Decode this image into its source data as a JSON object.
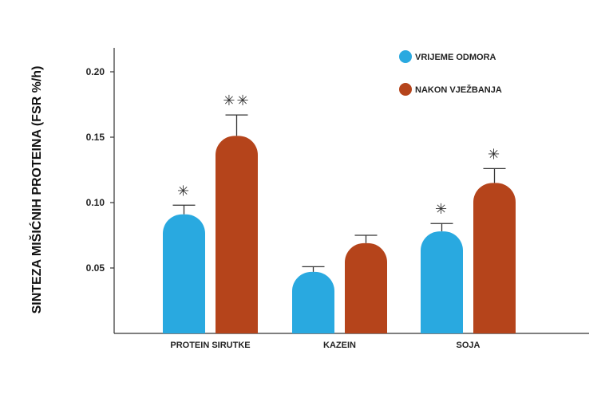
{
  "chart_data": {
    "type": "bar",
    "title": "",
    "xlabel": "",
    "ylabel": "SINTEZA MIŠIĆNIH PROTEINA (FSR %/h)",
    "ylim": [
      0,
      0.22
    ],
    "yticks": [
      "0.05",
      "0.10",
      "0.15",
      "0.20"
    ],
    "ytick_values": [
      0.05,
      0.1,
      0.15,
      0.2
    ],
    "categories": [
      "PROTEIN SIRUTKE",
      "KAZEIN",
      "SOJA"
    ],
    "legend_position": "top-right",
    "series": [
      {
        "name": "VRIJEME ODMORA",
        "color": "#29a9e0",
        "values": [
          0.091,
          0.047,
          0.078
        ],
        "error_upper": [
          0.098,
          0.051,
          0.084
        ],
        "annotations": [
          "*",
          "",
          "*"
        ]
      },
      {
        "name": "NAKON VJEŽBANJA",
        "color": "#b5441b",
        "values": [
          0.151,
          0.069,
          0.115
        ],
        "error_upper": [
          0.167,
          0.075,
          0.126
        ],
        "annotations": [
          "**",
          "",
          "*"
        ]
      }
    ]
  }
}
